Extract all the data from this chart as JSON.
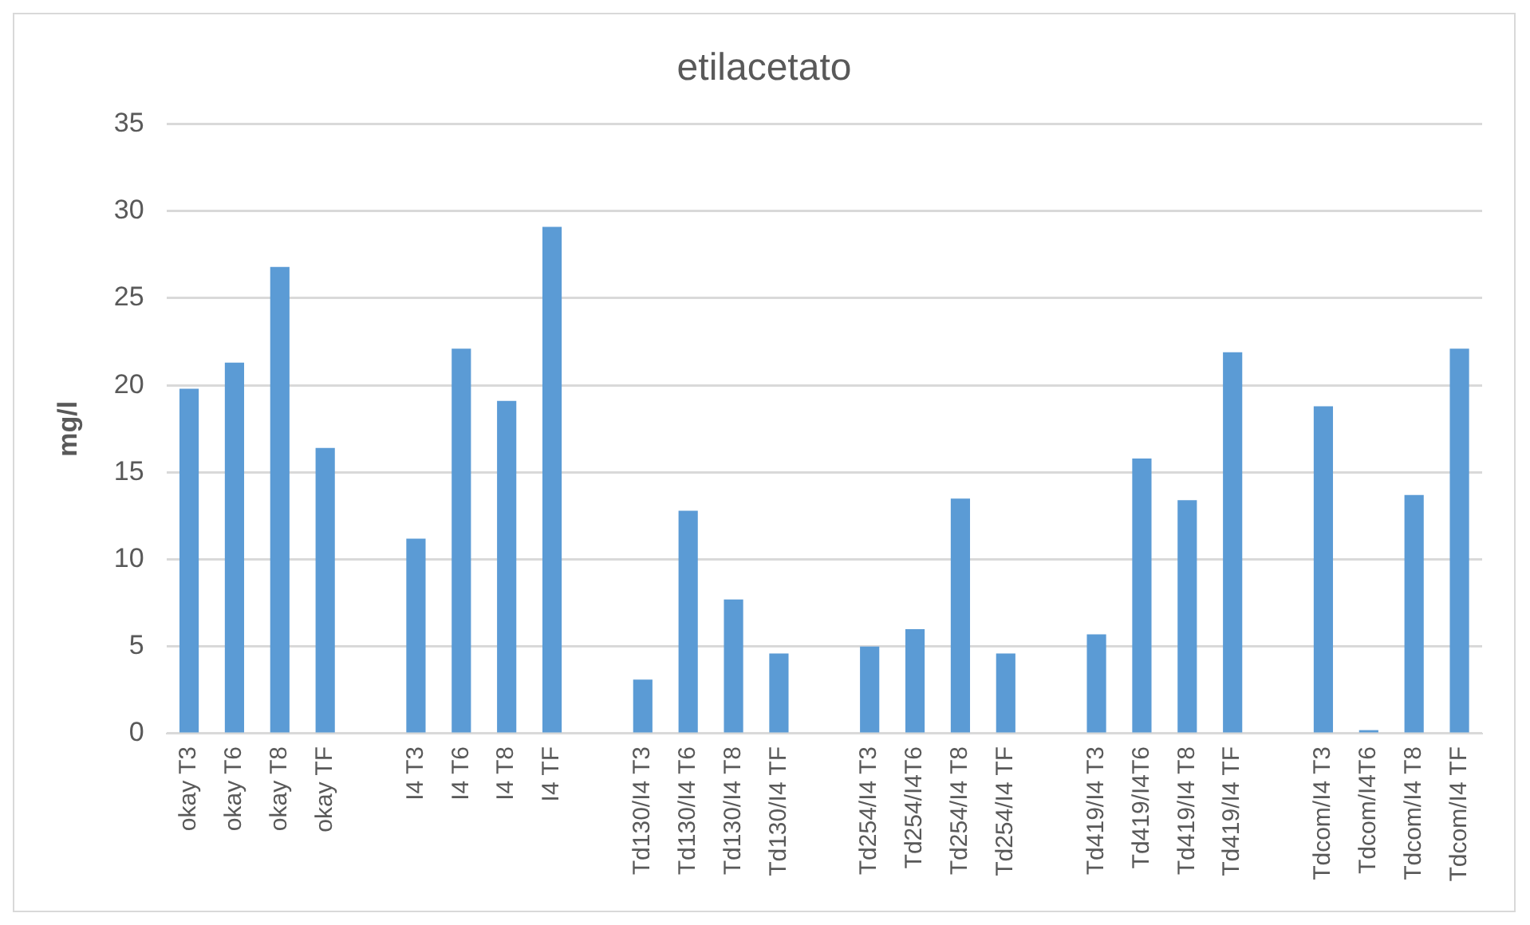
{
  "chart_data": {
    "type": "bar",
    "title": "etilacetato",
    "ylabel": "mg/l",
    "categories": [
      "okay T3",
      "okay T6",
      "okay T8",
      "okay TF",
      null,
      "I4 T3",
      "I4 T6",
      "I4 T8",
      "I4 TF",
      null,
      "Td130/I4 T3",
      "Td130/I4 T6",
      "Td130/I4 T8",
      "Td130/I4 TF",
      null,
      "Td254/I4 T3",
      "Td254/I4T6",
      "Td254/I4 T8",
      "Td254/I4 TF",
      null,
      "Td419/I4 T3",
      "Td419/I4T6",
      "Td419/I4 T8",
      "Td419/I4 TF",
      null,
      "Tdcom/I4 T3",
      "Tdcom/I4T6",
      "Tdcom/I4 T8",
      "Tdcom/I4 TF"
    ],
    "values": [
      19.8,
      21.3,
      26.8,
      16.4,
      null,
      11.2,
      22.1,
      19.1,
      29.1,
      null,
      3.1,
      12.8,
      7.7,
      4.6,
      null,
      5.0,
      6.0,
      13.5,
      4.6,
      null,
      5.7,
      15.8,
      13.4,
      21.9,
      null,
      18.8,
      0.2,
      13.7,
      22.1
    ],
    "color": "#5b9bd5",
    "ylim": [
      0,
      35
    ],
    "yticks": [
      0,
      5,
      10,
      15,
      20,
      25,
      30,
      35
    ],
    "grid": "y",
    "legend": false
  }
}
